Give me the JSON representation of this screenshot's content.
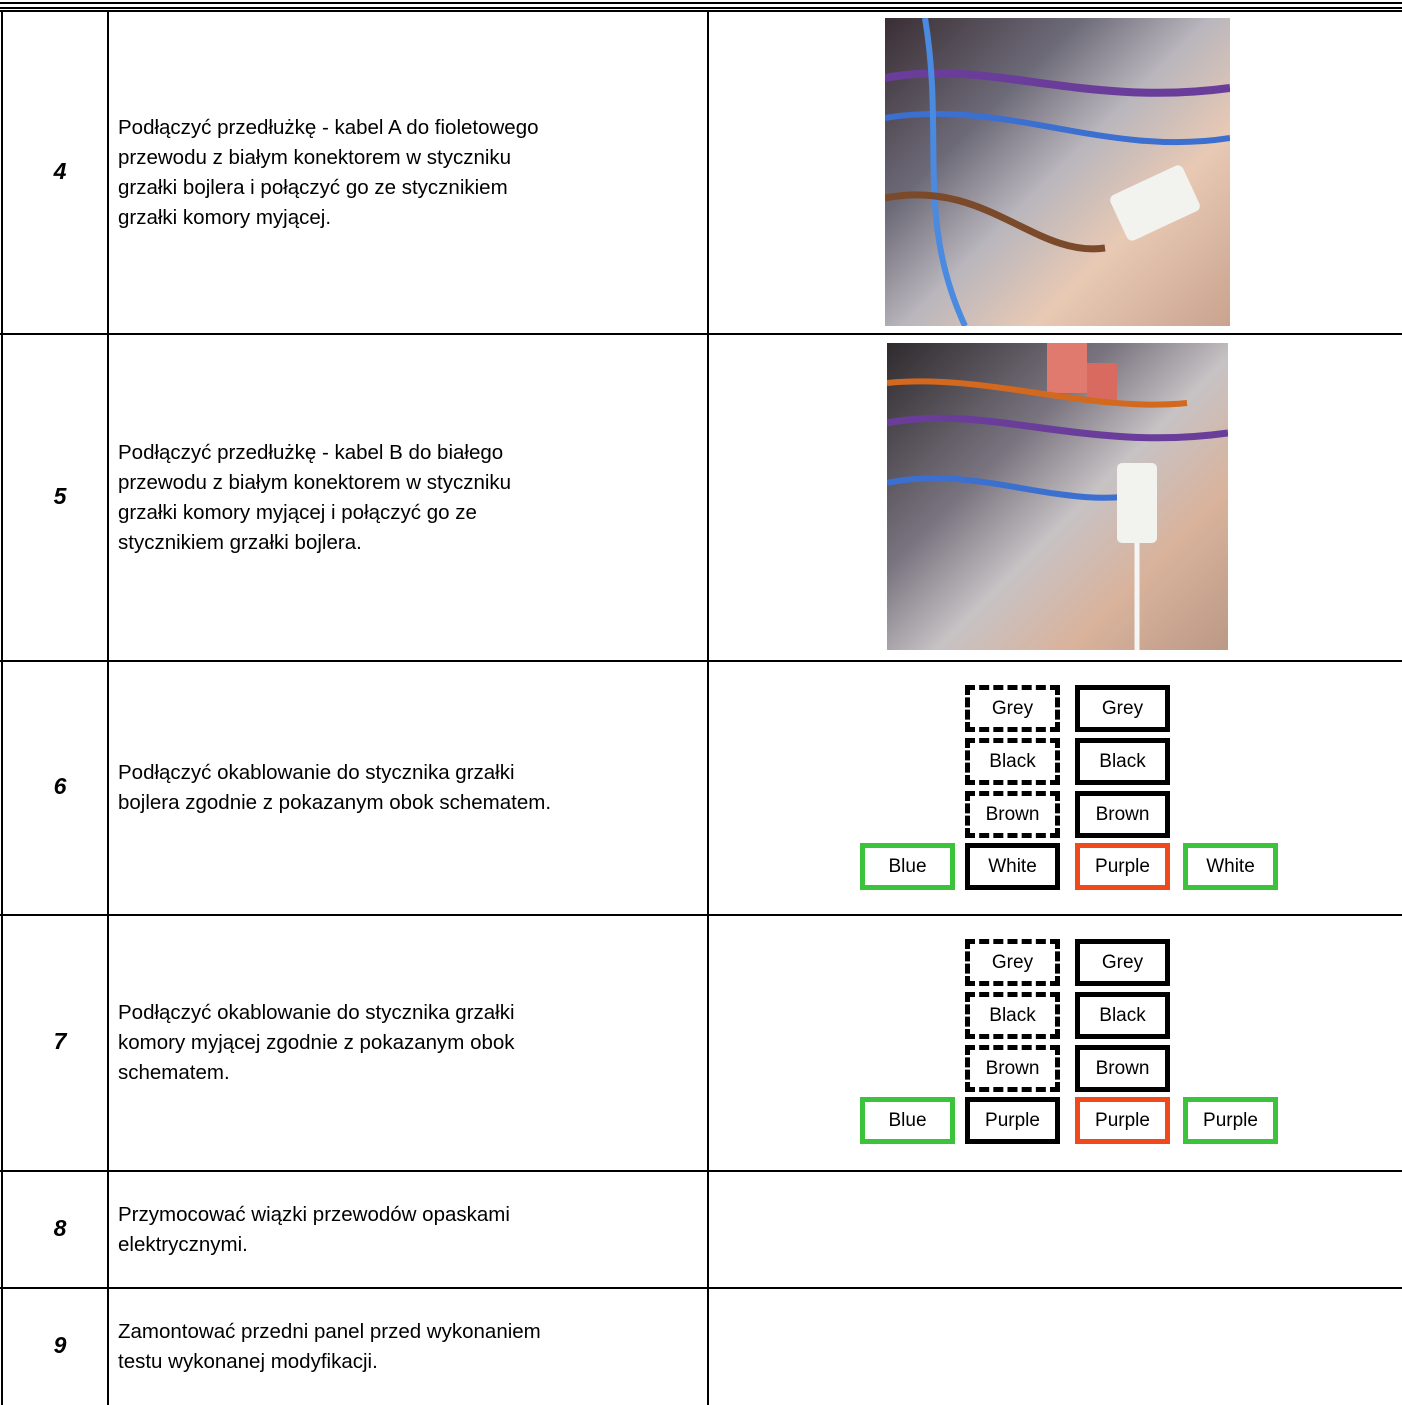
{
  "rows": [
    {
      "number": "4",
      "lines": [
        "Podłączyć przedłużkę - kabel A do fioletowego",
        "przewodu z białym konektorem w styczniku",
        "grzałki bojlera i połączyć go ze stycznikiem",
        "grzałki komory myjącej."
      ]
    },
    {
      "number": "5",
      "lines": [
        "Podłączyć przedłużkę - kabel B do białego",
        "przewodu z białym konektorem w styczniku",
        "grzałki komory myjącej i połączyć go ze",
        "stycznikiem grzałki bojlera."
      ]
    },
    {
      "number": "6",
      "lines": [
        "Podłączyć okablowanie do stycznika grzałki",
        "bojlera zgodnie z pokazanym obok schematem."
      ],
      "diagram": {
        "left_column": [
          "Grey",
          "Black",
          "Brown"
        ],
        "right_column": [
          "Grey",
          "Black",
          "Brown"
        ],
        "bottom_row": [
          "Blue",
          "White",
          "Purple",
          "White"
        ]
      }
    },
    {
      "number": "7",
      "lines": [
        "Podłączyć okablowanie do stycznika grzałki",
        "komory myjącej zgodnie z pokazanym obok",
        "schematem."
      ],
      "diagram": {
        "left_column": [
          "Grey",
          "Black",
          "Brown"
        ],
        "right_column": [
          "Grey",
          "Black",
          "Brown"
        ],
        "bottom_row": [
          "Blue",
          "Purple",
          "Purple",
          "Purple"
        ]
      }
    },
    {
      "number": "8",
      "lines": [
        "Przymocować wiązki przewodów opaskami",
        "elektrycznymi."
      ]
    },
    {
      "number": "9",
      "lines": [
        "Zamontować przedni panel przed wykonaniem",
        "testu wykonanej modyfikacji."
      ]
    }
  ]
}
